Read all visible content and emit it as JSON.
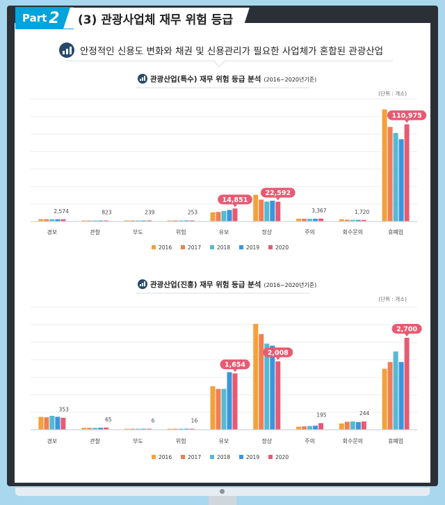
{
  "header": {
    "part_word": "Part",
    "part_num": "2",
    "title": "(3) 관광사업체 재무 위험 등급"
  },
  "headline": "안정적인 신용도 변화와 채권 및 신용관리가 필요한 사업체가 혼합된 관광산업",
  "colors": {
    "2016": "#f5a03a",
    "2017": "#f07f52",
    "2018": "#56b9d3",
    "2019": "#3a95dd",
    "2020": "#e85a72",
    "callout": "#e85a72"
  },
  "chart_data": [
    {
      "type": "bar",
      "title": "관광산업(특수) 재무 위험 등급 분석",
      "subtitle": "(2016~2020년기준)",
      "unit": "(단위 : 개소)",
      "categories": [
        "경보",
        "관찰",
        "부도",
        "위험",
        "유보",
        "정상",
        "주의",
        "회수문의",
        "휴폐업"
      ],
      "series": [
        {
          "name": "2016",
          "values": [
            2700,
            830,
            245,
            258,
            10500,
            30500,
            3250,
            2600,
            128000
          ]
        },
        {
          "name": "2017",
          "values": [
            2650,
            820,
            240,
            255,
            10900,
            25000,
            3150,
            1950,
            108000
          ]
        },
        {
          "name": "2018",
          "values": [
            2620,
            815,
            238,
            252,
            12100,
            22800,
            3080,
            1850,
            101000
          ]
        },
        {
          "name": "2019",
          "values": [
            2600,
            818,
            236,
            250,
            13200,
            23700,
            3100,
            1800,
            94000
          ]
        },
        {
          "name": "2020",
          "values": [
            2574,
            823,
            239,
            253,
            14851,
            22592,
            3367,
            1720,
            110975
          ]
        }
      ],
      "data_labels": [
        "2,574",
        "823",
        "239",
        "253",
        "14,851",
        "22,592",
        "3,367",
        "1,720",
        "110,975"
      ],
      "highlighted": [
        4,
        5,
        8
      ],
      "ylim": [
        0,
        140000
      ],
      "legend": "bottom"
    },
    {
      "type": "bar",
      "title": "관광산업(진흥) 재무 위험 등급 분석",
      "subtitle": "(2016~2020년기준)",
      "unit": "(단위 : 개소)",
      "categories": [
        "경보",
        "관찰",
        "부도",
        "위험",
        "유보",
        "정상",
        "주의",
        "회수문의",
        "휴폐업"
      ],
      "series": [
        {
          "name": "2016",
          "values": [
            380,
            58,
            5,
            14,
            1280,
            3110,
            90,
            185,
            1790
          ]
        },
        {
          "name": "2017",
          "values": [
            365,
            55,
            5,
            14,
            1200,
            2810,
            100,
            235,
            1990
          ]
        },
        {
          "name": "2018",
          "values": [
            410,
            56,
            6,
            15,
            1200,
            2530,
            110,
            245,
            2300
          ]
        },
        {
          "name": "2019",
          "values": [
            380,
            60,
            6,
            16,
            1690,
            2470,
            120,
            225,
            1990
          ]
        },
        {
          "name": "2020",
          "values": [
            353,
            65,
            6,
            16,
            1654,
            2008,
            195,
            244,
            2700
          ]
        }
      ],
      "data_labels": [
        "353",
        "65",
        "6",
        "16",
        "1,654",
        "2,008",
        "195",
        "244",
        "2,700"
      ],
      "highlighted": [
        4,
        5,
        8
      ],
      "ylim": [
        0,
        3600
      ],
      "legend": "bottom"
    }
  ]
}
